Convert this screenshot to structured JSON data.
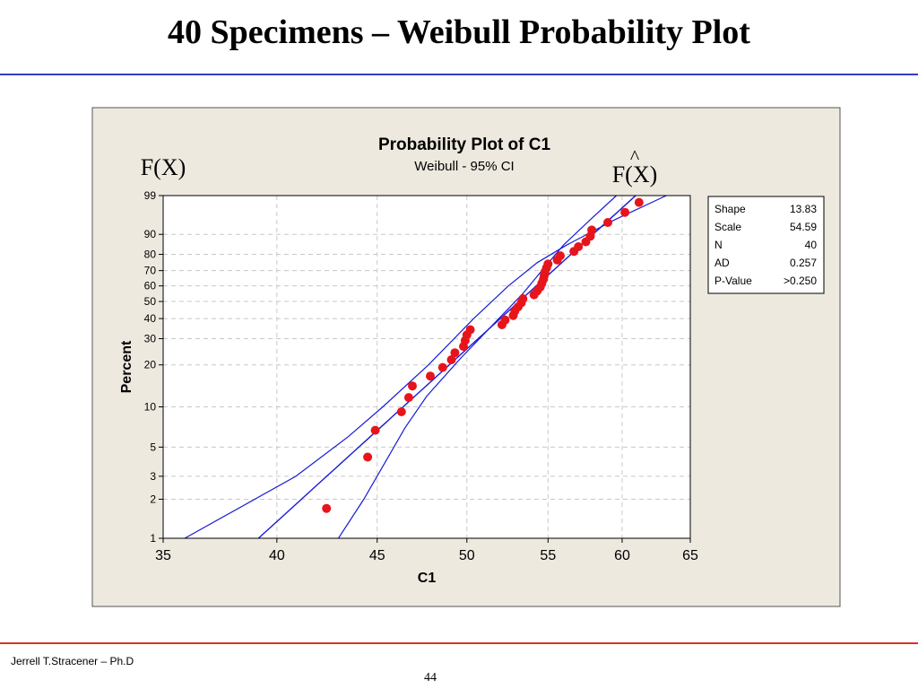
{
  "slide": {
    "title": "40 Specimens – Weibull Probability Plot",
    "author": "Jerrell T.Stracener – Ph.D",
    "page_number": "44"
  },
  "annotations": {
    "left": "F(X)",
    "right": "F(X)",
    "right_hat": "^"
  },
  "chart_data": {
    "type": "scatter",
    "scale": "weibull-probability",
    "title": "Probability Plot of C1",
    "subtitle": "Weibull - 95% CI",
    "xlabel": "C1",
    "ylabel": "Percent",
    "xlim": [
      35,
      65
    ],
    "xscale": "log",
    "ylim": [
      1,
      99
    ],
    "xticks": [
      35,
      40,
      45,
      50,
      55,
      60,
      65
    ],
    "yticks": [
      1,
      2,
      3,
      5,
      10,
      20,
      30,
      40,
      50,
      60,
      70,
      80,
      90,
      99
    ],
    "grid": true,
    "colors": {
      "points": "#e8141b",
      "lines": "#1a1ad6",
      "background": "#ede9df",
      "grid": "#c8c8c8"
    },
    "stats": [
      {
        "label": "Shape",
        "value": "13.83"
      },
      {
        "label": "Scale",
        "value": "54.59"
      },
      {
        "label": "N",
        "value": "40"
      },
      {
        "label": "AD",
        "value": "0.257"
      },
      {
        "label": "P-Value",
        "value": ">0.250"
      }
    ],
    "fit": {
      "shape": 13.83,
      "scale": 54.59
    },
    "ci_lower": [
      {
        "x": 35.9,
        "y": 1
      },
      {
        "x": 40.9,
        "y": 3
      },
      {
        "x": 43.5,
        "y": 6
      },
      {
        "x": 45.3,
        "y": 10
      },
      {
        "x": 47.8,
        "y": 20
      },
      {
        "x": 50.4,
        "y": 40
      },
      {
        "x": 52.5,
        "y": 60
      },
      {
        "x": 54.3,
        "y": 75
      },
      {
        "x": 56.2,
        "y": 85
      },
      {
        "x": 59.5,
        "y": 95
      },
      {
        "x": 63.2,
        "y": 99
      }
    ],
    "ci_upper": [
      {
        "x": 43.0,
        "y": 1
      },
      {
        "x": 44.3,
        "y": 2
      },
      {
        "x": 45.5,
        "y": 4
      },
      {
        "x": 46.5,
        "y": 7
      },
      {
        "x": 47.7,
        "y": 12
      },
      {
        "x": 49.6,
        "y": 22
      },
      {
        "x": 51.7,
        "y": 38
      },
      {
        "x": 53.4,
        "y": 55
      },
      {
        "x": 54.6,
        "y": 70
      },
      {
        "x": 56.0,
        "y": 85
      },
      {
        "x": 57.8,
        "y": 95
      },
      {
        "x": 59.6,
        "y": 99
      }
    ],
    "points": [
      {
        "x": 42.4,
        "y": 1.7
      },
      {
        "x": 44.5,
        "y": 4.2
      },
      {
        "x": 44.9,
        "y": 6.7
      },
      {
        "x": 46.3,
        "y": 9.2
      },
      {
        "x": 46.7,
        "y": 11.7
      },
      {
        "x": 46.9,
        "y": 14.2
      },
      {
        "x": 47.9,
        "y": 16.7
      },
      {
        "x": 48.6,
        "y": 19.2
      },
      {
        "x": 49.1,
        "y": 21.7
      },
      {
        "x": 49.3,
        "y": 24.2
      },
      {
        "x": 49.8,
        "y": 26.7
      },
      {
        "x": 49.9,
        "y": 29.2
      },
      {
        "x": 50.0,
        "y": 31.7
      },
      {
        "x": 50.2,
        "y": 34.2
      },
      {
        "x": 52.1,
        "y": 36.7
      },
      {
        "x": 52.3,
        "y": 39.2
      },
      {
        "x": 52.8,
        "y": 41.7
      },
      {
        "x": 52.9,
        "y": 44.2
      },
      {
        "x": 53.1,
        "y": 46.7
      },
      {
        "x": 53.3,
        "y": 49.2
      },
      {
        "x": 53.4,
        "y": 51.7
      },
      {
        "x": 54.1,
        "y": 54.2
      },
      {
        "x": 54.3,
        "y": 56.7
      },
      {
        "x": 54.5,
        "y": 59.2
      },
      {
        "x": 54.6,
        "y": 61.7
      },
      {
        "x": 54.7,
        "y": 64.2
      },
      {
        "x": 54.75,
        "y": 66.7
      },
      {
        "x": 54.8,
        "y": 69.2
      },
      {
        "x": 54.9,
        "y": 71.7
      },
      {
        "x": 55.0,
        "y": 74.2
      },
      {
        "x": 55.6,
        "y": 76.7
      },
      {
        "x": 55.8,
        "y": 79.2
      },
      {
        "x": 56.7,
        "y": 81.7
      },
      {
        "x": 57.0,
        "y": 84.2
      },
      {
        "x": 57.5,
        "y": 86.7
      },
      {
        "x": 57.8,
        "y": 89.2
      },
      {
        "x": 57.9,
        "y": 91.7
      },
      {
        "x": 59.0,
        "y": 94.2
      },
      {
        "x": 60.2,
        "y": 96.7
      },
      {
        "x": 61.2,
        "y": 98.3
      }
    ]
  }
}
